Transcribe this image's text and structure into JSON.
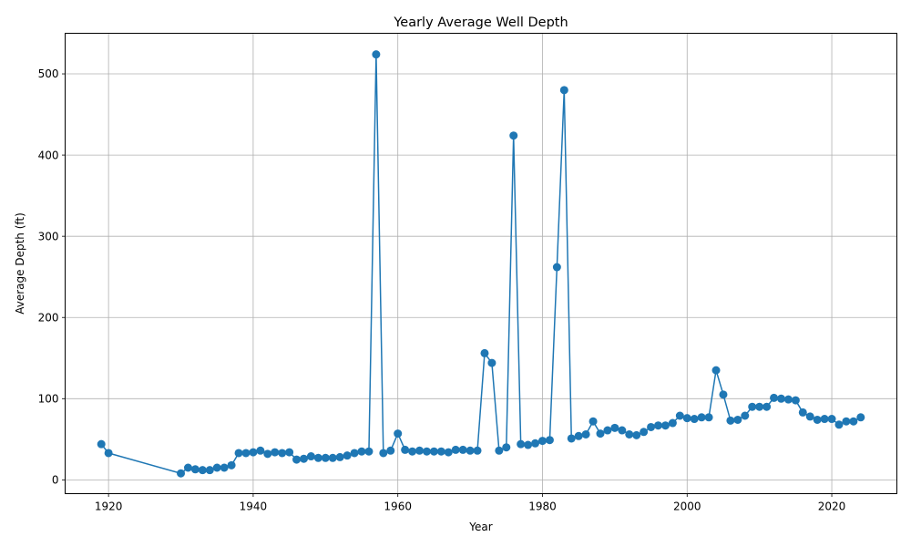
{
  "chart_data": {
    "type": "line",
    "title": "Yearly Average Well Depth",
    "xlabel": "Year",
    "ylabel": "Average Depth (ft)",
    "xlim": [
      1914,
      2029
    ],
    "ylim": [
      -17,
      550
    ],
    "xticks": [
      1920,
      1940,
      1960,
      1980,
      2000,
      2020
    ],
    "yticks": [
      0,
      100,
      200,
      300,
      400,
      500
    ],
    "grid": true,
    "marker": "circle",
    "color": "#1f77b4",
    "series": [
      {
        "x": [
          1919,
          1920,
          1930,
          1931,
          1932,
          1933,
          1934,
          1935,
          1936,
          1937,
          1938,
          1939,
          1940,
          1941,
          1942,
          1943,
          1944,
          1945,
          1946,
          1947,
          1948,
          1949,
          1950,
          1951,
          1952,
          1953,
          1954,
          1955,
          1956,
          1957,
          1958,
          1959,
          1960,
          1961,
          1962,
          1963,
          1964,
          1965,
          1966,
          1967,
          1968,
          1969,
          1970,
          1971,
          1972,
          1973,
          1974,
          1975,
          1976,
          1977,
          1978,
          1979,
          1980,
          1981,
          1982,
          1983,
          1984,
          1985,
          1986,
          1987,
          1988,
          1989,
          1990,
          1991,
          1992,
          1993,
          1994,
          1995,
          1996,
          1997,
          1998,
          1999,
          2000,
          2001,
          2002,
          2003,
          2004,
          2005,
          2006,
          2007,
          2008,
          2009,
          2010,
          2011,
          2012,
          2013,
          2014,
          2015,
          2016,
          2017,
          2018,
          2019,
          2020,
          2021,
          2022,
          2023,
          2024
        ],
        "y": [
          44,
          33,
          8,
          15,
          13,
          12,
          12,
          15,
          15,
          18,
          33,
          33,
          34,
          36,
          32,
          34,
          33,
          34,
          25,
          26,
          29,
          27,
          27,
          27,
          28,
          30,
          33,
          35,
          35,
          524,
          33,
          36,
          57,
          37,
          35,
          36,
          35,
          35,
          35,
          34,
          37,
          37,
          36,
          36,
          156,
          144,
          36,
          40,
          424,
          44,
          43,
          45,
          48,
          49,
          262,
          480,
          51,
          54,
          56,
          72,
          57,
          61,
          64,
          61,
          56,
          55,
          59,
          65,
          67,
          67,
          70,
          79,
          76,
          75,
          77,
          77,
          135,
          105,
          73,
          74,
          79,
          90,
          90,
          90,
          101,
          100,
          99,
          98,
          83,
          78,
          74,
          75,
          75,
          68,
          72,
          72,
          77
        ]
      }
    ]
  }
}
